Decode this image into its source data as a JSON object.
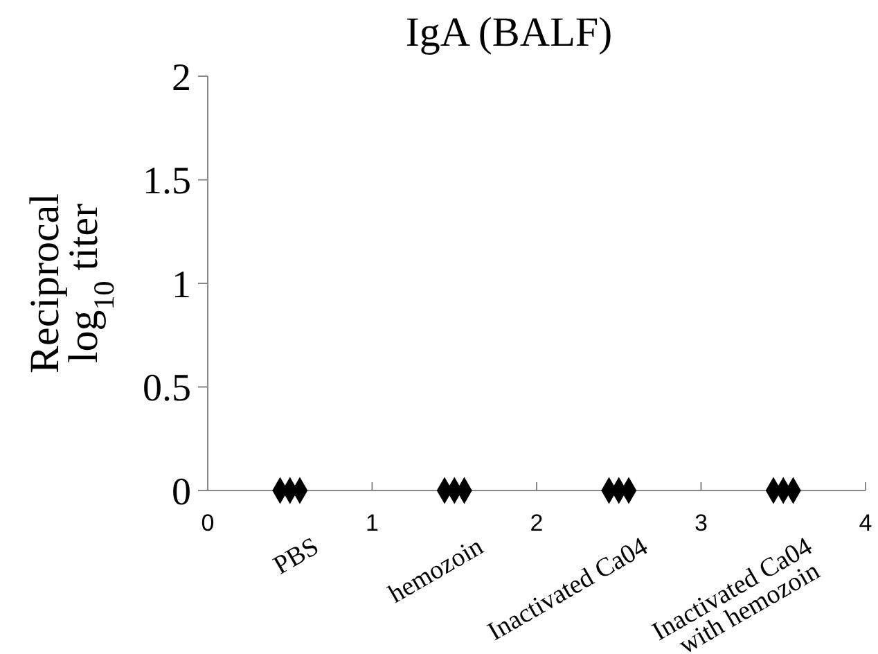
{
  "chart_data": {
    "type": "scatter",
    "title": "IgA (BALF)",
    "ylabel": "Reciprocal\nlog$_{10}$ titer",
    "x": [
      0.44,
      0.5,
      0.56,
      1.44,
      1.5,
      1.56,
      2.44,
      2.5,
      2.56,
      3.44,
      3.5,
      3.56
    ],
    "values": [
      0,
      0,
      0,
      0,
      0,
      0,
      0,
      0,
      0,
      0,
      0,
      0
    ],
    "color": "#000000",
    "marker": "diamond",
    "xlim": [
      0,
      4
    ],
    "xticks": [
      0,
      1,
      2,
      3,
      4
    ],
    "ylim": [
      0,
      2
    ],
    "yticks": [
      0,
      0.5,
      1,
      1.5,
      2
    ],
    "grid": false,
    "annotations": [
      "PBS",
      "hemozoin",
      "Inactivated Ca04",
      "Inactivated Ca04\nwith hemozoin"
    ]
  }
}
